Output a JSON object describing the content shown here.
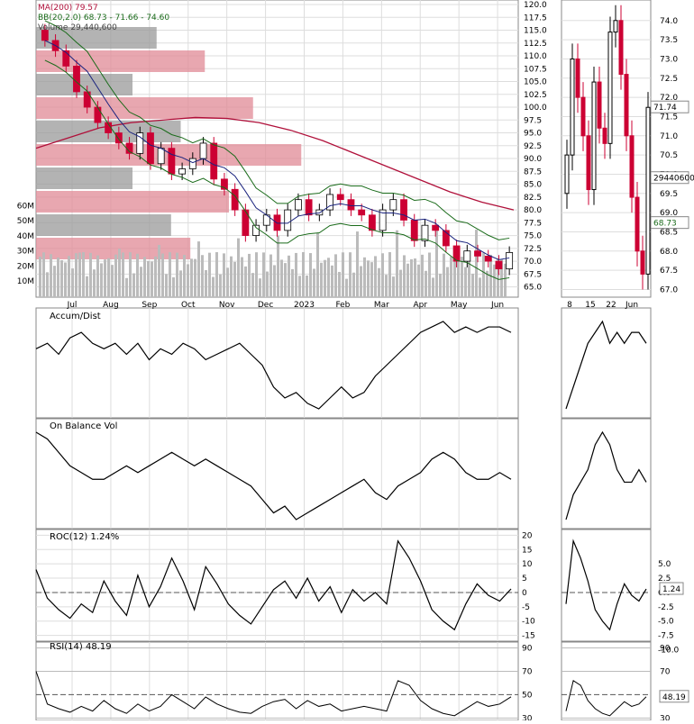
{
  "legend": {
    "ma200": "MA(200) 79.57",
    "bb": "BB(20,2.0) 68.73 - 71.66 - 74.60",
    "volume": "Volume 29,440,600"
  },
  "colors": {
    "up_candle": "#000000",
    "down_candle": "#cc0033",
    "ma200": "#b0103a",
    "bb": "#1a6b1a",
    "ma50": "#1a237e",
    "volume_bar": "#bbbbbb",
    "profile_gray": "#999999",
    "profile_pink": "#e08a95",
    "grid": "#dddddd"
  },
  "chart_data": [
    {
      "type": "line",
      "panel": "price",
      "x_ticks": [
        "Jul",
        "Aug",
        "Sep",
        "Oct",
        "Nov",
        "Dec",
        "2023",
        "Feb",
        "Mar",
        "Apr",
        "May",
        "Jun"
      ],
      "ylim": [
        63,
        120
      ],
      "y_ticks": [
        "65.0",
        "67.5",
        "70.0",
        "72.5",
        "75.0",
        "77.5",
        "80.0",
        "82.5",
        "85.0",
        "87.5",
        "90.0",
        "92.5",
        "95.0",
        "97.5",
        "100.0",
        "102.5",
        "105.0",
        "107.5",
        "110.0",
        "112.5",
        "115.0",
        "117.5",
        "120.0"
      ],
      "volume_ticks": [
        "10M",
        "20M",
        "30M",
        "40M",
        "50M",
        "60M"
      ],
      "series": [
        {
          "name": "MA(200) 79.57",
          "values": [
            92,
            94,
            96,
            97,
            97.5,
            98,
            97.8,
            97,
            95.5,
            93.5,
            91,
            88.5,
            86,
            83.5,
            81.5,
            80
          ]
        },
        {
          "name": "BB(20,2.0) 68.73 - 71.66 - 74.60",
          "upper_last": 74.6,
          "middle_last": 71.66,
          "lower_last": 68.73
        }
      ],
      "close_series": [
        113,
        111,
        108,
        103,
        100,
        97,
        95,
        93,
        91,
        95,
        89,
        92,
        87,
        88,
        90,
        93,
        86,
        84,
        80,
        75,
        77,
        79,
        76,
        80,
        82,
        79,
        80,
        83,
        82,
        80,
        79,
        76,
        80,
        82,
        78,
        74,
        77,
        76,
        73,
        70,
        72,
        71,
        70,
        68.5,
        71.7
      ],
      "last_close": "71.74",
      "last_volume": "29440600",
      "bb_lower_label": "68.73",
      "bb_upper_label": "74.6"
    },
    {
      "type": "line",
      "panel": "inset",
      "x_ticks": [
        "8",
        "15",
        "22",
        "Jun"
      ],
      "y_ticks": [
        "67.0",
        "67.5",
        "68.0",
        "68.5",
        "69.0",
        "69.5",
        "70.0",
        "70.5",
        "71.0",
        "71.5",
        "72.0",
        "72.5",
        "73.0",
        "73.5",
        "74.0"
      ],
      "ylim": [
        66.8,
        74.3
      ]
    },
    {
      "type": "line",
      "panel": "accum-dist",
      "title": "Accum/Dist",
      "values": [
        5,
        6,
        4,
        7,
        8,
        6,
        5,
        6,
        4,
        6,
        3,
        5,
        4,
        6,
        5,
        3,
        4,
        5,
        6,
        4,
        2,
        -2,
        -4,
        -3,
        -5,
        -6,
        -4,
        -2,
        -4,
        -3,
        0,
        2,
        4,
        6,
        8,
        9,
        10,
        8,
        9,
        8,
        9,
        9,
        8
      ]
    },
    {
      "type": "line",
      "panel": "obv",
      "title": "On Balance Vol",
      "values": [
        9,
        8,
        6,
        4,
        3,
        2,
        2,
        3,
        4,
        3,
        4,
        5,
        6,
        5,
        4,
        5,
        4,
        3,
        2,
        1,
        -1,
        -3,
        -2,
        -4,
        -3,
        -2,
        -1,
        0,
        1,
        2,
        0,
        -1,
        1,
        2,
        3,
        5,
        6,
        5,
        3,
        2,
        2,
        3,
        2
      ]
    },
    {
      "type": "line",
      "panel": "roc",
      "title": "ROC(12) 1.24%",
      "y_ticks": [
        "-15",
        "-10",
        "-5",
        "0",
        "5",
        "10",
        "15",
        "20"
      ],
      "ylim": [
        -17,
        22
      ],
      "values": [
        8,
        -2,
        -6,
        -9,
        -4,
        -7,
        4,
        -3,
        -8,
        6,
        -5,
        2,
        12,
        4,
        -6,
        9,
        3,
        -4,
        -8,
        -11,
        -5,
        1,
        4,
        -2,
        5,
        -3,
        2,
        -7,
        1,
        -3,
        0,
        -4,
        18,
        12,
        4,
        -6,
        -10,
        -13,
        -4,
        3,
        -1,
        -3,
        1.24
      ],
      "last_label": "1.24",
      "inset_y_ticks": [
        "-10.0",
        "-7.5",
        "-5.0",
        "-2.5",
        "0.0",
        "2.5",
        "5.0"
      ]
    },
    {
      "type": "line",
      "panel": "rsi",
      "title": "RSI(14) 48.19",
      "y_ticks": [
        "30",
        "50",
        "70",
        "90"
      ],
      "ylim": [
        28,
        95
      ],
      "values": [
        70,
        42,
        38,
        35,
        40,
        36,
        45,
        38,
        34,
        42,
        36,
        40,
        50,
        44,
        38,
        48,
        42,
        38,
        35,
        34,
        40,
        44,
        46,
        38,
        45,
        40,
        42,
        36,
        38,
        40,
        38,
        36,
        62,
        58,
        45,
        38,
        34,
        32,
        38,
        44,
        40,
        42,
        48.19
      ],
      "last_label": "48.19"
    }
  ]
}
